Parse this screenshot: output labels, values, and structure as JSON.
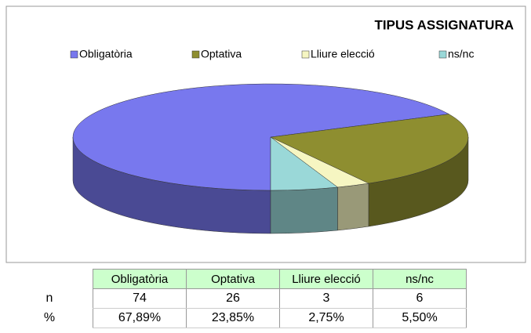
{
  "chart_data": {
    "type": "pie",
    "title": "TIPUS ASSIGNATURA",
    "categories": [
      "Obligatòria",
      "Optativa",
      "Lliure elecció",
      "ns/nc"
    ],
    "values": [
      74,
      26,
      3,
      6
    ],
    "colors": [
      "#7878ee",
      "#8e8e30",
      "#f6f6c2",
      "#9ad8d8"
    ],
    "legend": "top",
    "three_d": true
  },
  "table": {
    "row_labels": [
      "n",
      "%"
    ],
    "percents": [
      "67,89%",
      "23,85%",
      "2,75%",
      "5,50%"
    ]
  }
}
